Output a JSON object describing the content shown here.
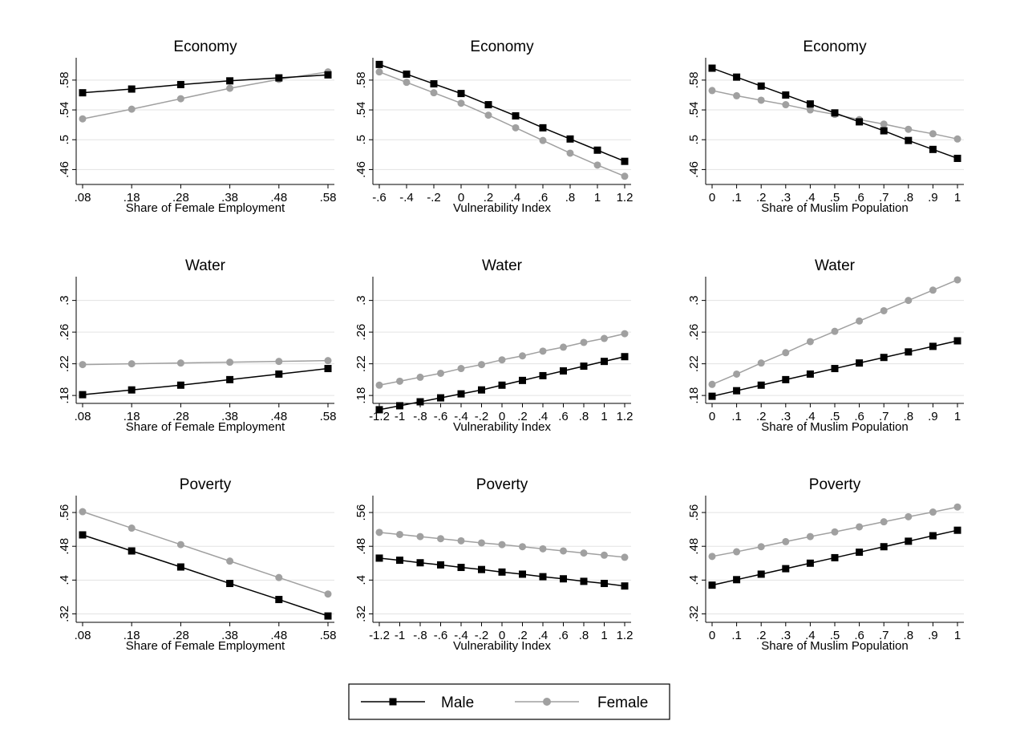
{
  "legend": {
    "entries": [
      {
        "label": "Male",
        "color": "#000000",
        "marker": "square"
      },
      {
        "label": "Female",
        "color": "#a0a0a0",
        "marker": "circle"
      }
    ]
  },
  "chart_data": [
    {
      "type": "line",
      "title": "Economy",
      "xlabel": "Share of Female Employment",
      "ylabel": "",
      "x": [
        0.08,
        0.18,
        0.28,
        0.38,
        0.48,
        0.58
      ],
      "xticks": [
        ".08",
        ".18",
        ".28",
        ".38",
        ".48",
        ".58"
      ],
      "yticks": [
        ".46",
        ".5",
        ".54",
        ".58"
      ],
      "ylim": [
        0.44,
        0.61
      ],
      "xlim": [
        0.08,
        0.58
      ],
      "series": [
        {
          "name": "Male",
          "values": [
            0.563,
            0.568,
            0.574,
            0.579,
            0.583,
            0.587
          ]
        },
        {
          "name": "Female",
          "values": [
            0.528,
            0.541,
            0.555,
            0.569,
            0.581,
            0.591
          ]
        }
      ]
    },
    {
      "type": "line",
      "title": "Economy",
      "xlabel": "Vulnerability Index",
      "ylabel": "",
      "x": [
        -0.6,
        -0.4,
        -0.2,
        0,
        0.2,
        0.4,
        0.6,
        0.8,
        1,
        1.2
      ],
      "xticks": [
        "-.6",
        "-.4",
        "-.2",
        "0",
        ".2",
        ".4",
        ".6",
        ".8",
        "1",
        "1.2"
      ],
      "yticks": [
        ".46",
        ".5",
        ".54",
        ".58"
      ],
      "ylim": [
        0.44,
        0.61
      ],
      "xlim": [
        -0.6,
        1.2
      ],
      "series": [
        {
          "name": "Male",
          "values": [
            0.601,
            0.588,
            0.575,
            0.562,
            0.547,
            0.532,
            0.516,
            0.501,
            0.486,
            0.471
          ]
        },
        {
          "name": "Female",
          "values": [
            0.591,
            0.577,
            0.563,
            0.549,
            0.533,
            0.516,
            0.499,
            0.482,
            0.466,
            0.451
          ]
        }
      ]
    },
    {
      "type": "line",
      "title": "Economy",
      "xlabel": "Share of Muslim Population",
      "ylabel": "",
      "x": [
        0,
        0.1,
        0.2,
        0.3,
        0.4,
        0.5,
        0.6,
        0.7,
        0.8,
        0.9,
        1
      ],
      "xticks": [
        "0",
        ".1",
        ".2",
        ".3",
        ".4",
        ".5",
        ".6",
        ".7",
        ".8",
        ".9",
        "1"
      ],
      "yticks": [
        ".46",
        ".5",
        ".54",
        ".58"
      ],
      "ylim": [
        0.44,
        0.61
      ],
      "xlim": [
        0,
        1
      ],
      "series": [
        {
          "name": "Male",
          "values": [
            0.596,
            0.584,
            0.572,
            0.56,
            0.548,
            0.536,
            0.524,
            0.512,
            0.499,
            0.487,
            0.475
          ]
        },
        {
          "name": "Female",
          "values": [
            0.566,
            0.559,
            0.553,
            0.547,
            0.54,
            0.534,
            0.527,
            0.521,
            0.514,
            0.508,
            0.501
          ]
        }
      ]
    },
    {
      "type": "line",
      "title": "Water",
      "xlabel": "Share of Female Employment",
      "ylabel": "",
      "x": [
        0.08,
        0.18,
        0.28,
        0.38,
        0.48,
        0.58
      ],
      "xticks": [
        ".08",
        ".18",
        ".28",
        ".38",
        ".48",
        ".58"
      ],
      "yticks": [
        ".18",
        ".22",
        ".26",
        ".3"
      ],
      "ylim": [
        0.17,
        0.33
      ],
      "xlim": [
        0.08,
        0.58
      ],
      "series": [
        {
          "name": "Male",
          "values": [
            0.181,
            0.187,
            0.193,
            0.2,
            0.207,
            0.214
          ]
        },
        {
          "name": "Female",
          "values": [
            0.219,
            0.22,
            0.221,
            0.222,
            0.223,
            0.224
          ]
        }
      ]
    },
    {
      "type": "line",
      "title": "Water",
      "xlabel": "Vulnerability Index",
      "ylabel": "",
      "x": [
        -1.2,
        -1,
        -0.8,
        -0.6,
        -0.4,
        -0.2,
        0,
        0.2,
        0.4,
        0.6,
        0.8,
        1,
        1.2
      ],
      "xticks": [
        "-1.2",
        "-1",
        "-.8",
        "-.6",
        "-.4",
        "-.2",
        "0",
        ".2",
        ".4",
        ".6",
        ".8",
        "1",
        "1.2"
      ],
      "yticks": [
        ".18",
        ".22",
        ".26",
        ".3"
      ],
      "ylim": [
        0.17,
        0.33
      ],
      "xlim": [
        -1.2,
        1.2
      ],
      "series": [
        {
          "name": "Male",
          "values": [
            0.162,
            0.167,
            0.172,
            0.177,
            0.182,
            0.187,
            0.193,
            0.199,
            0.205,
            0.211,
            0.217,
            0.223,
            0.229
          ]
        },
        {
          "name": "Female",
          "values": [
            0.193,
            0.198,
            0.203,
            0.208,
            0.214,
            0.219,
            0.225,
            0.23,
            0.236,
            0.241,
            0.247,
            0.252,
            0.258
          ]
        }
      ]
    },
    {
      "type": "line",
      "title": "Water",
      "xlabel": "Share of Muslim Population",
      "ylabel": "",
      "x": [
        0,
        0.1,
        0.2,
        0.3,
        0.4,
        0.5,
        0.6,
        0.7,
        0.8,
        0.9,
        1
      ],
      "xticks": [
        "0",
        ".1",
        ".2",
        ".3",
        ".4",
        ".5",
        ".6",
        ".7",
        ".8",
        ".9",
        "1"
      ],
      "yticks": [
        ".18",
        ".22",
        ".26",
        ".3"
      ],
      "ylim": [
        0.17,
        0.33
      ],
      "xlim": [
        0,
        1
      ],
      "series": [
        {
          "name": "Male",
          "values": [
            0.179,
            0.186,
            0.193,
            0.2,
            0.207,
            0.214,
            0.221,
            0.228,
            0.235,
            0.242,
            0.249
          ]
        },
        {
          "name": "Female",
          "values": [
            0.194,
            0.207,
            0.221,
            0.234,
            0.248,
            0.261,
            0.274,
            0.287,
            0.3,
            0.313,
            0.326
          ]
        }
      ]
    },
    {
      "type": "line",
      "title": "Poverty",
      "xlabel": "Share of Female Employment",
      "ylabel": "",
      "x": [
        0.08,
        0.18,
        0.28,
        0.38,
        0.48,
        0.58
      ],
      "xticks": [
        ".08",
        ".18",
        ".28",
        ".38",
        ".48",
        ".58"
      ],
      "yticks": [
        ".32",
        ".4",
        ".48",
        ".56"
      ],
      "ylim": [
        0.3,
        0.6
      ],
      "xlim": [
        0.08,
        0.58
      ],
      "series": [
        {
          "name": "Male",
          "values": [
            0.507,
            0.469,
            0.431,
            0.392,
            0.354,
            0.315
          ]
        },
        {
          "name": "Female",
          "values": [
            0.562,
            0.523,
            0.484,
            0.445,
            0.406,
            0.367
          ]
        }
      ]
    },
    {
      "type": "line",
      "title": "Poverty",
      "xlabel": "Vulnerability Index",
      "ylabel": "",
      "x": [
        -1.2,
        -1,
        -0.8,
        -0.6,
        -0.4,
        -0.2,
        0,
        0.2,
        0.4,
        0.6,
        0.8,
        1,
        1.2
      ],
      "xticks": [
        "-1.2",
        "-1",
        "-.8",
        "-.6",
        "-.4",
        "-.2",
        "0",
        ".2",
        ".4",
        ".6",
        ".8",
        "1",
        "1.2"
      ],
      "yticks": [
        ".32",
        ".4",
        ".48",
        ".56"
      ],
      "ylim": [
        0.3,
        0.6
      ],
      "xlim": [
        -1.2,
        1.2
      ],
      "series": [
        {
          "name": "Male",
          "values": [
            0.452,
            0.447,
            0.441,
            0.436,
            0.43,
            0.425,
            0.419,
            0.414,
            0.408,
            0.403,
            0.397,
            0.392,
            0.386
          ]
        },
        {
          "name": "Female",
          "values": [
            0.513,
            0.508,
            0.503,
            0.498,
            0.493,
            0.488,
            0.484,
            0.479,
            0.474,
            0.469,
            0.464,
            0.459,
            0.454
          ]
        }
      ]
    },
    {
      "type": "line",
      "title": "Poverty",
      "xlabel": "Share of Muslim Population",
      "ylabel": "",
      "x": [
        0,
        0.1,
        0.2,
        0.3,
        0.4,
        0.5,
        0.6,
        0.7,
        0.8,
        0.9,
        1
      ],
      "xticks": [
        "0",
        ".1",
        ".2",
        ".3",
        ".4",
        ".5",
        ".6",
        ".7",
        ".8",
        ".9",
        "1"
      ],
      "yticks": [
        ".32",
        ".4",
        ".48",
        ".56"
      ],
      "ylim": [
        0.3,
        0.6
      ],
      "xlim": [
        0,
        1
      ],
      "series": [
        {
          "name": "Male",
          "values": [
            0.388,
            0.401,
            0.414,
            0.427,
            0.44,
            0.453,
            0.466,
            0.479,
            0.492,
            0.505,
            0.518
          ]
        },
        {
          "name": "Female",
          "values": [
            0.456,
            0.467,
            0.479,
            0.491,
            0.503,
            0.514,
            0.526,
            0.538,
            0.55,
            0.561,
            0.573
          ]
        }
      ]
    }
  ]
}
